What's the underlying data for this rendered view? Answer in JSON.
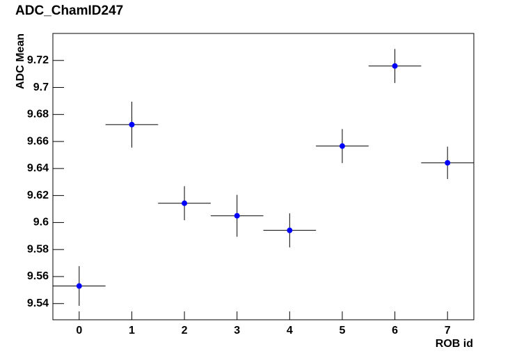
{
  "chart_data": {
    "type": "scatter",
    "title": "ADC_ChamID247",
    "x_label": "ROB id",
    "y_label": "ADC Mean",
    "x": [
      0,
      1,
      2,
      3,
      4,
      5,
      6,
      7
    ],
    "x_errors": [
      0.5,
      0.5,
      0.5,
      0.5,
      0.5,
      0.5,
      0.5,
      0.5
    ],
    "series": [
      {
        "color": "#0000ff",
        "values": [
          9.553,
          9.6725,
          9.6143,
          9.605,
          9.5942,
          9.6566,
          9.7159,
          9.6442
        ],
        "y_errors": [
          0.0147,
          0.017,
          0.0126,
          0.0155,
          0.0126,
          0.0126,
          0.0126,
          0.012
        ]
      }
    ],
    "xlim": [
      -0.5,
      7.5
    ],
    "xticks": [
      0,
      1,
      2,
      3,
      4,
      5,
      6,
      7
    ],
    "ylim": [
      9.528,
      9.74
    ],
    "yticks": [
      9.54,
      9.56,
      9.58,
      9.6,
      9.62,
      9.64,
      9.66,
      9.68,
      9.7,
      9.72
    ],
    "grid": false
  }
}
